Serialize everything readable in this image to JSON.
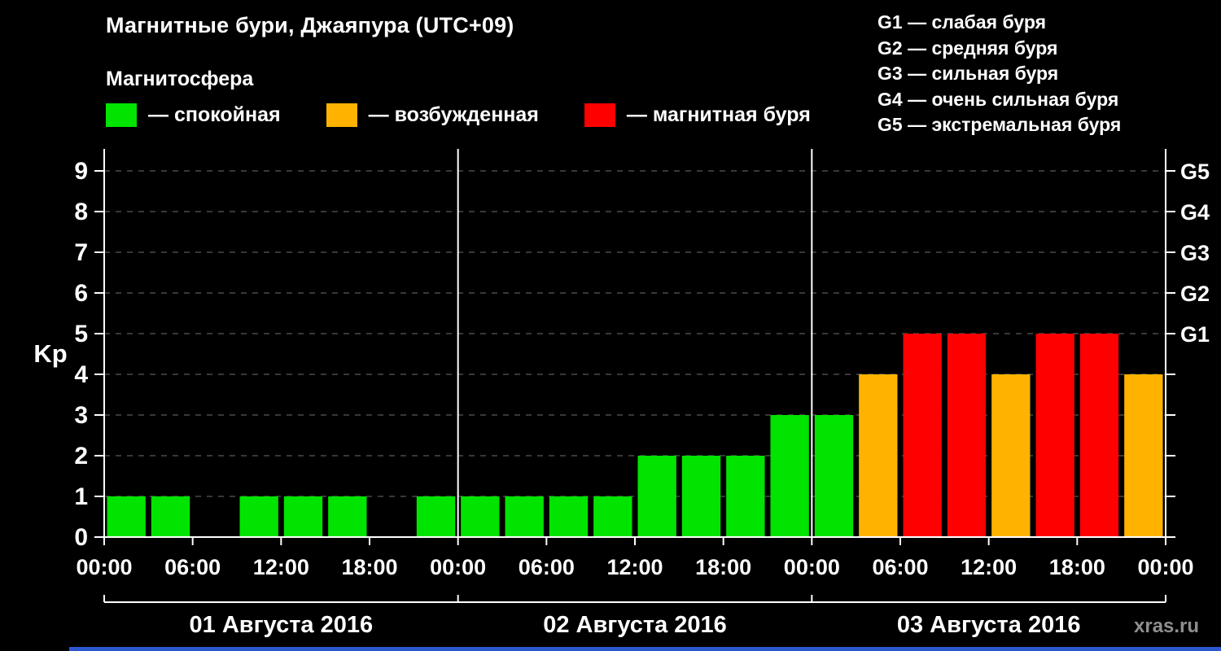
{
  "title": "Магнитные бури, Джаяпура (UTC+09)",
  "legend": {
    "heading": "Магнитосфера",
    "items": [
      {
        "name": "calm",
        "label": "— спокойная",
        "color": "#00e400"
      },
      {
        "name": "active",
        "label": "— возбужденная",
        "color": "#ffb300"
      },
      {
        "name": "storm",
        "label": "— магнитная буря",
        "color": "#ff0000"
      }
    ]
  },
  "g_scale": {
    "items": [
      {
        "text": "G1 — слабая буря"
      },
      {
        "text": "G2 — средняя буря"
      },
      {
        "text": "G3 — сильная буря"
      },
      {
        "text": "G4 — очень сильная буря"
      },
      {
        "text": "G5 — экстремальная буря"
      }
    ]
  },
  "watermark": "xras.ru",
  "chart_data": {
    "type": "bar",
    "title": "Магнитные бури, Джаяпура (UTC+09)",
    "ylabel": "Kp",
    "ylim": [
      0,
      9
    ],
    "y_ticks": [
      0,
      1,
      2,
      3,
      4,
      5,
      6,
      7,
      8,
      9
    ],
    "grid": "dashed horizontal gridlines at each integer Kp, vertical white day dividers",
    "interval_hours": 3,
    "hour_labels": [
      "00:00",
      "06:00",
      "12:00",
      "18:00"
    ],
    "end_hour_label": "00:00",
    "right_axis_labels": [
      {
        "kp": 5,
        "label": "G1"
      },
      {
        "kp": 6,
        "label": "G2"
      },
      {
        "kp": 7,
        "label": "G3"
      },
      {
        "kp": 8,
        "label": "G4"
      },
      {
        "kp": 9,
        "label": "G5"
      }
    ],
    "bar_colors": {
      "calm": "#00e400",
      "active": "#ffb300",
      "storm": "#ff0000"
    },
    "color_rule": "Kp<=3 calm green, Kp=4 active orange, Kp>=5 storm red",
    "days": [
      {
        "date": "01 Августа 2016",
        "values": [
          1,
          1,
          0,
          1,
          1,
          1,
          0,
          1
        ]
      },
      {
        "date": "02 Августа 2016",
        "values": [
          1,
          1,
          1,
          1,
          2,
          2,
          2,
          3
        ]
      },
      {
        "date": "03 Августа 2016",
        "values": [
          3,
          4,
          5,
          5,
          4,
          5,
          5,
          4
        ]
      }
    ]
  }
}
